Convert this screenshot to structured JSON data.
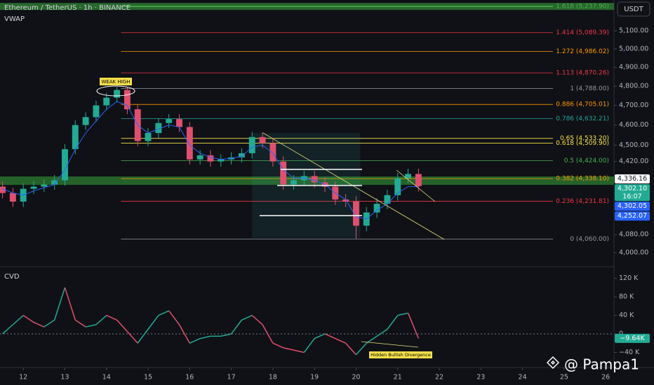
{
  "chart_data": {
    "type": "candlestick",
    "title": "Ethereum / TetherUS · 1h · BINANCE",
    "indicator": "VWAP",
    "currency": "USDT",
    "log_scale": true,
    "xlim": [
      11.44,
      26.2
    ],
    "xticks": [
      12,
      13,
      14,
      15,
      16,
      17,
      18,
      19,
      20,
      21,
      22,
      23,
      24,
      25,
      26
    ],
    "ylim": [
      3942,
      5275
    ],
    "yticks": [
      {
        "value": 5100,
        "label": "5,100.00"
      },
      {
        "value": 5000,
        "label": "5,000.00"
      },
      {
        "value": 4900,
        "label": "4,900.00"
      },
      {
        "value": 4800,
        "label": "4,800.00"
      },
      {
        "value": 4700,
        "label": "4,700.00"
      },
      {
        "value": 4600,
        "label": "4,600.00"
      },
      {
        "value": 4500,
        "label": "4,500.00"
      },
      {
        "value": 4420,
        "label": "4,420.00"
      },
      {
        "value": 4080,
        "label": "4,080.00"
      },
      {
        "value": 4000,
        "label": "4,000.00"
      }
    ],
    "x": [
      11.5,
      11.75,
      12,
      12.25,
      12.5,
      12.75,
      13,
      13.25,
      13.5,
      13.75,
      14,
      14.25,
      14.5,
      14.75,
      15,
      15.25,
      15.5,
      15.75,
      16,
      16.25,
      16.5,
      16.75,
      17,
      17.25,
      17.5,
      17.75,
      18,
      18.25,
      18.5,
      18.75,
      19,
      19.25,
      19.5,
      19.75,
      20,
      20.25,
      20.5,
      20.75,
      21,
      21.25,
      21.5
    ],
    "open": [
      4300,
      4270,
      4230,
      4290,
      4300,
      4310,
      4330,
      4480,
      4600,
      4640,
      4700,
      4740,
      4780,
      4680,
      4520,
      4560,
      4610,
      4630,
      4590,
      4430,
      4450,
      4420,
      4430,
      4440,
      4460,
      4540,
      4510,
      4420,
      4310,
      4330,
      4350,
      4320,
      4300,
      4240,
      4230,
      4120,
      4180,
      4220,
      4260,
      4340,
      4360
    ],
    "high": [
      4325,
      4295,
      4315,
      4325,
      4335,
      4355,
      4505,
      4625,
      4665,
      4725,
      4765,
      4795,
      4795,
      4705,
      4585,
      4635,
      4655,
      4655,
      4615,
      4475,
      4475,
      4455,
      4465,
      4485,
      4565,
      4565,
      4535,
      4445,
      4355,
      4375,
      4375,
      4345,
      4325,
      4265,
      4255,
      4205,
      4245,
      4285,
      4365,
      4385,
      4385
    ],
    "low": [
      4245,
      4205,
      4205,
      4265,
      4275,
      4285,
      4305,
      4455,
      4575,
      4615,
      4675,
      4715,
      4655,
      4495,
      4495,
      4535,
      4585,
      4565,
      4405,
      4405,
      4395,
      4395,
      4405,
      4415,
      4435,
      4485,
      4395,
      4285,
      4285,
      4305,
      4295,
      4275,
      4215,
      4205,
      4062,
      4095,
      4155,
      4195,
      4235,
      4315,
      4277
    ],
    "close": [
      4270,
      4230,
      4290,
      4300,
      4310,
      4330,
      4480,
      4600,
      4640,
      4700,
      4740,
      4780,
      4680,
      4520,
      4560,
      4610,
      4630,
      4590,
      4430,
      4450,
      4420,
      4430,
      4440,
      4460,
      4540,
      4510,
      4420,
      4310,
      4330,
      4350,
      4320,
      4300,
      4240,
      4230,
      4120,
      4180,
      4220,
      4260,
      4340,
      4360,
      4302
    ],
    "up_color": "#22ab94",
    "down_color": "#e0506e",
    "vwap": {
      "color": "#2962ff",
      "values": [
        4290,
        4270,
        4260,
        4280,
        4295,
        4310,
        4380,
        4480,
        4560,
        4620,
        4680,
        4720,
        4700,
        4600,
        4560,
        4580,
        4600,
        4590,
        4500,
        4460,
        4440,
        4430,
        4435,
        4445,
        4490,
        4500,
        4460,
        4380,
        4340,
        4340,
        4330,
        4310,
        4270,
        4240,
        4160,
        4150,
        4190,
        4220,
        4270,
        4300,
        4300
      ]
    },
    "fib_levels": [
      {
        "value": 5237.9,
        "label": "1.618 (5,237.90)",
        "color": "#4caf50"
      },
      {
        "value": 5089.39,
        "label": "1.414 (5,089.39)",
        "color": "#f23645"
      },
      {
        "value": 4986.02,
        "label": "1.272 (4,986.02)",
        "color": "#ff9800"
      },
      {
        "value": 4870.26,
        "label": "1.113 (4,870.26)",
        "color": "#f23645"
      },
      {
        "value": 4788.0,
        "label": "1 (4,788.00)",
        "color": "#9598a1"
      },
      {
        "value": 4705.01,
        "label": "0.886 (4,705.01)",
        "color": "#ff9800"
      },
      {
        "value": 4632.21,
        "label": "0.786 (4,632.21)",
        "color": "#26a69a"
      },
      {
        "value": 4533.2,
        "label": "0.65 (4,533.20)",
        "color": "#f7e04b"
      },
      {
        "value": 4509.9,
        "label": "0.618 (4,509.90)",
        "color": "#f7e04b"
      },
      {
        "value": 4424.0,
        "label": "0.5 (4,424.00)",
        "color": "#4caf50"
      },
      {
        "value": 4338.1,
        "label": "0.382 (4,338.10)",
        "color": "#ff9800"
      },
      {
        "value": 4231.81,
        "label": "0.236 (4,231.81)",
        "color": "#f23645"
      },
      {
        "value": 4060.0,
        "label": "0 (4,060.00)",
        "color": "#9598a1"
      }
    ],
    "price_labels": [
      {
        "value": 4336.16,
        "label": "4,336.16",
        "color": "#ffffff"
      },
      {
        "value": 4302.1,
        "label": "4,302.10",
        "color": "#22ab94",
        "time": "16:07"
      },
      {
        "value": 4302.05,
        "label": "4,302.05",
        "color": "#2962ff"
      },
      {
        "value": 4252.07,
        "label": "4,252.07",
        "color": "#2962ff"
      }
    ],
    "annotations": [
      "WEAK HIGH",
      "Hidden Bullish Divergence"
    ],
    "cvd": {
      "name": "CVD",
      "color": "#22ab94",
      "ylim": [
        -65000,
        139000
      ],
      "yticks": [
        {
          "value": 120000,
          "label": "120 K"
        },
        {
          "value": 80000,
          "label": "80 K"
        },
        {
          "value": 40000,
          "label": "40 K"
        },
        0,
        {
          "value": -40000,
          "label": "−40 K"
        }
      ],
      "values": [
        0,
        20000,
        40000,
        25000,
        15000,
        30000,
        100000,
        30000,
        15000,
        20000,
        40000,
        30000,
        5000,
        -20000,
        10000,
        40000,
        50000,
        20000,
        -20000,
        -10000,
        -5000,
        -5000,
        0,
        30000,
        40000,
        20000,
        -20000,
        -30000,
        -35000,
        -40000,
        -10000,
        0,
        -10000,
        -20000,
        -45000,
        -20000,
        -5000,
        10000,
        40000,
        45000,
        -9640
      ],
      "last": {
        "value": -9640,
        "label": "−9.64K"
      }
    },
    "watermark": "@ Pampa1"
  }
}
